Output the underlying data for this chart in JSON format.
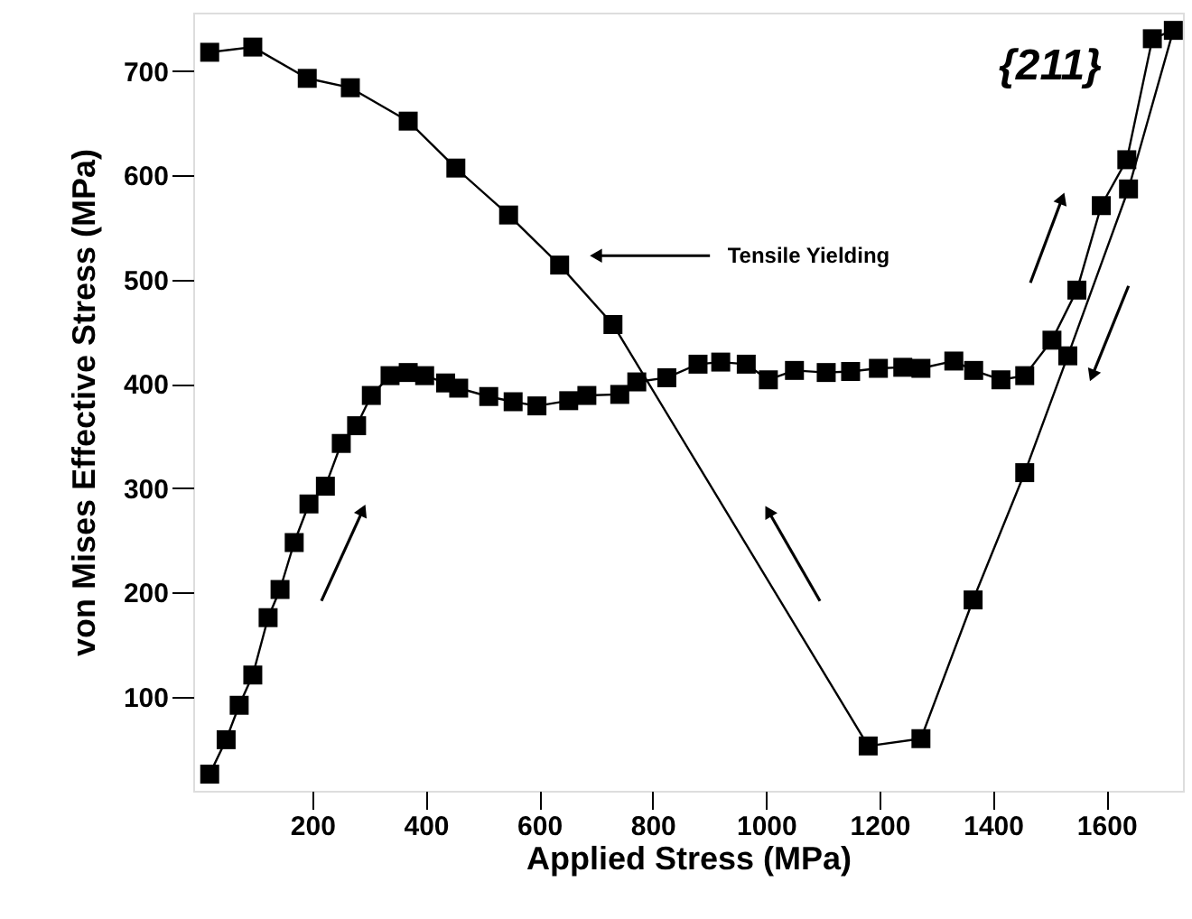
{
  "chart_data": {
    "type": "line",
    "xlabel": "Applied Stress (MPa)",
    "ylabel": "von Mises Effective Stress (MPa)",
    "xlim": [
      -10,
      1735
    ],
    "ylim": [
      10,
      756
    ],
    "xticks": [
      200,
      400,
      600,
      800,
      1000,
      1200,
      1400,
      1600
    ],
    "yticks": [
      100,
      200,
      300,
      400,
      500,
      600,
      700
    ],
    "grid": false,
    "marker": "square",
    "line_style": "solid",
    "annotations": [
      "{211}",
      "Tensile Yielding"
    ],
    "series": [
      {
        "color": "#000000",
        "x": [
          19,
          48,
          71,
          95,
          122,
          143,
          168,
          194,
          223,
          251,
          278,
          304,
          337,
          369,
          398,
          435,
          458,
          511,
          554,
          596,
          652,
          684,
          742,
          772,
          825,
          880,
          920,
          965,
          1004,
          1050,
          1106,
          1149,
          1198,
          1241,
          1273,
          1331,
          1366,
          1414,
          1456,
          1504,
          1548,
          1591,
          1636,
          1681,
          1718,
          1639,
          1532,
          1456,
          1365,
          1273,
          1180,
          730,
          636,
          546,
          453,
          369,
          267,
          191,
          95,
          19
        ],
        "values": [
          26,
          59,
          92,
          121,
          176,
          203,
          248,
          285,
          302,
          343,
          360,
          389,
          408,
          411,
          408,
          401,
          396,
          388,
          383,
          379,
          384,
          389,
          390,
          402,
          406,
          419,
          421,
          419,
          404,
          413,
          411,
          412,
          415,
          416,
          415,
          422,
          413,
          404,
          408,
          442,
          490,
          571,
          615,
          731,
          739,
          587,
          427,
          315,
          193,
          60,
          53,
          457,
          514,
          562,
          607,
          652,
          684,
          693,
          723,
          718
        ]
      }
    ]
  }
}
